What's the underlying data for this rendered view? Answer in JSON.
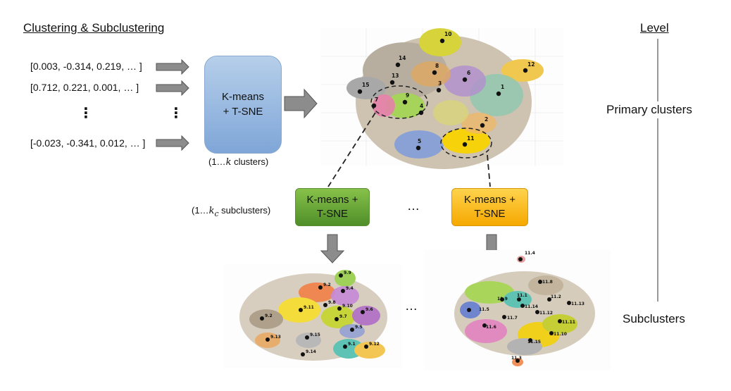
{
  "header": {
    "title": "Clustering & Subclustering",
    "level_title": "Level"
  },
  "levels": {
    "primary": "Primary clusters",
    "sub": "Subclusters"
  },
  "vectors": [
    "[0.003, -0.314, 0.219, … ]",
    "[0.712, 0.221, 0.001, … ]",
    "[-0.023, -0.341, 0.012, … ]"
  ],
  "vector_ellipsis": "⋮",
  "kmeans_main": {
    "label": "K-means\n+ T-SNE",
    "caption_pre": "(1…",
    "caption_var": "k",
    "caption_post": " clusters)"
  },
  "sub_caption": {
    "pre": "(1…",
    "var": "k",
    "sub": "c",
    "post": " subclusters)"
  },
  "kmeans_green": {
    "label": "K-means +\nT-SNE"
  },
  "kmeans_orange": {
    "label": "K-means +\nT-SNE"
  },
  "between_ellipsis": "…",
  "primary_cluster_labels": [
    "1",
    "2",
    "3",
    "4",
    "5",
    "6",
    "7",
    "8",
    "9",
    "10",
    "11",
    "12",
    "13",
    "14",
    "15"
  ],
  "sub9_labels": [
    "9.1",
    "9.2",
    "9.3",
    "9.4",
    "9.5",
    "9.6",
    "9.7",
    "9.8",
    "9.9",
    "9.10",
    "9.11",
    "9.12",
    "9.13",
    "9.14",
    "9.15"
  ],
  "sub11_labels": [
    "11.1",
    "11.2",
    "11.3",
    "11.4",
    "11.5",
    "11.6",
    "11.7",
    "11.8",
    "11.9",
    "11.10",
    "11.11",
    "11.12",
    "11.13",
    "11.14",
    "11.15"
  ],
  "colors": {
    "blue_box": "#8fb1de",
    "green_box": "#5e9e34",
    "orange_box": "#f8b400",
    "arrow": "#7f7f7f"
  }
}
